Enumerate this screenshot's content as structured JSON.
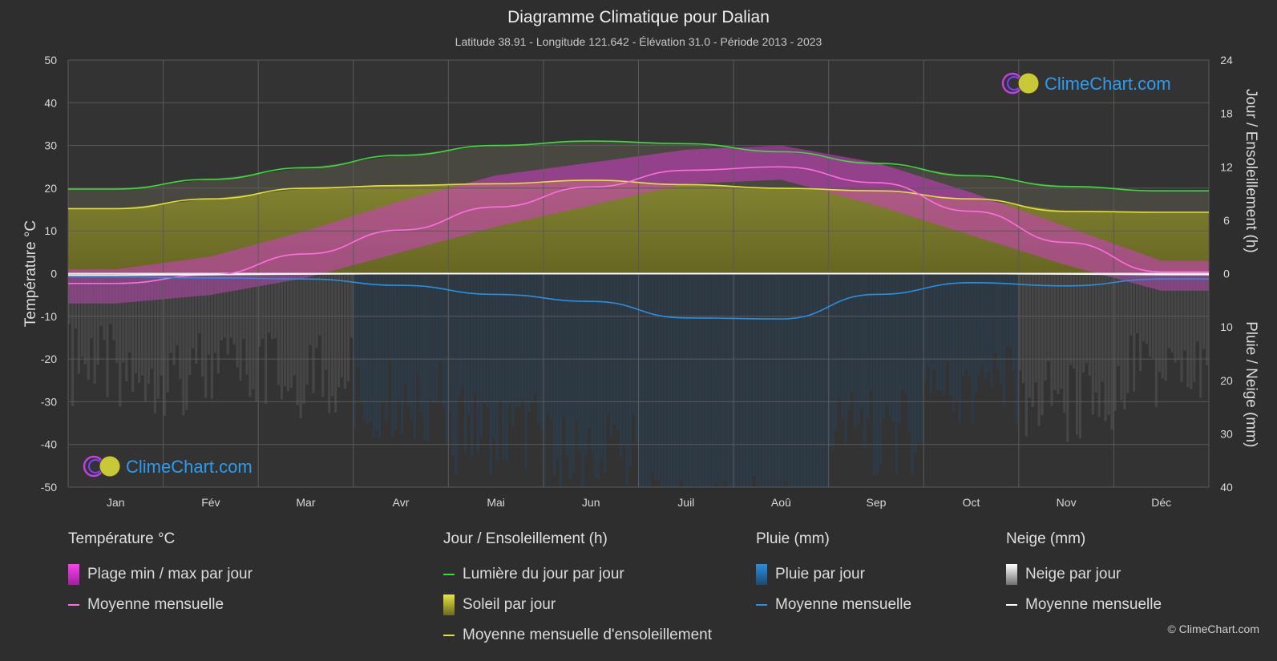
{
  "header": {
    "title": "Diagramme Climatique pour Dalian",
    "subtitle": "Latitude 38.91 - Longitude 121.642 - Élévation 31.0 - Période 2013 - 2023"
  },
  "chart_data": {
    "type": "line",
    "categories": [
      "Jan",
      "Fév",
      "Mar",
      "Avr",
      "Mai",
      "Jun",
      "Juil",
      "Aoû",
      "Sep",
      "Oct",
      "Nov",
      "Déc"
    ],
    "y_left": {
      "label": "Température °C",
      "range": [
        -50,
        50
      ],
      "ticks": [
        "50",
        "40",
        "30",
        "20",
        "10",
        "0",
        "-10",
        "-20",
        "-30",
        "-40",
        "-50"
      ]
    },
    "y_right_top": {
      "label": "Jour / Ensoleillement (h)",
      "range": [
        0,
        24
      ],
      "ticks": [
        "24",
        "18",
        "12",
        "6",
        "0"
      ]
    },
    "y_right_bottom": {
      "label": "Pluie / Neige (mm)",
      "range": [
        0,
        40
      ],
      "ticks": [
        "10",
        "20",
        "30",
        "40"
      ]
    },
    "series": [
      {
        "name": "Lumière du jour par jour",
        "unit": "h",
        "color": "#3ddc3d",
        "values": [
          9.5,
          10.6,
          11.9,
          13.3,
          14.4,
          14.9,
          14.6,
          13.7,
          12.4,
          11.0,
          9.8,
          9.3
        ]
      },
      {
        "name": "Moyenne mensuelle d'ensoleillement",
        "unit": "h",
        "color": "#e2e23a",
        "values": [
          7.3,
          8.4,
          9.6,
          9.9,
          10.1,
          10.5,
          10.0,
          9.6,
          9.3,
          8.4,
          7.0,
          6.9
        ]
      },
      {
        "name": "Moyenne mensuelle",
        "group": "Température °C",
        "unit": "°C",
        "color": "#ff6ee0",
        "values": [
          -2.3,
          -0.3,
          4.6,
          10.2,
          15.6,
          20.3,
          24.2,
          25.0,
          21.3,
          14.6,
          7.3,
          0.4
        ]
      },
      {
        "name": "Moyenne mensuelle",
        "group": "Pluie (mm)",
        "unit": "mm",
        "color": "#2b8fe0",
        "values": [
          0.6,
          0.8,
          1.0,
          2.2,
          3.9,
          5.2,
          8.3,
          8.5,
          3.9,
          1.7,
          2.3,
          1.0
        ]
      },
      {
        "name": "Moyenne mensuelle",
        "group": "Neige (mm)",
        "unit": "mm",
        "color": "#ffffff",
        "values": [
          0.3,
          0.2,
          0.1,
          0,
          0,
          0,
          0,
          0,
          0,
          0,
          0.1,
          0.2
        ]
      }
    ],
    "temp_range_max": [
      1,
      4,
      10,
      17,
      23,
      26,
      29,
      30,
      26,
      19,
      11,
      3
    ],
    "temp_range_min": [
      -7,
      -5,
      -1,
      5,
      11,
      16,
      21,
      22,
      16,
      9,
      2,
      -4
    ],
    "grid": true
  },
  "legend": {
    "groups": [
      {
        "title": "Température °C",
        "items": [
          {
            "label": "Plage min / max par jour",
            "kind": "box",
            "color": "#e23ad8"
          },
          {
            "label": "Moyenne mensuelle",
            "kind": "line",
            "color": "#ff6ee0"
          }
        ]
      },
      {
        "title": "Jour / Ensoleillement (h)",
        "items": [
          {
            "label": "Lumière du jour par jour",
            "kind": "line",
            "color": "#3ddc3d"
          },
          {
            "label": "Soleil par jour",
            "kind": "box",
            "color": "#c8c83a"
          },
          {
            "label": "Moyenne mensuelle d'ensoleillement",
            "kind": "line",
            "color": "#e2e23a"
          }
        ]
      },
      {
        "title": "Pluie (mm)",
        "items": [
          {
            "label": "Pluie par jour",
            "kind": "box",
            "color": "#2b8fe0"
          },
          {
            "label": "Moyenne mensuelle",
            "kind": "line",
            "color": "#2b8fe0"
          }
        ]
      },
      {
        "title": "Neige (mm)",
        "items": [
          {
            "label": "Neige par jour",
            "kind": "box",
            "color": "#d8d8d8"
          },
          {
            "label": "Moyenne mensuelle",
            "kind": "line",
            "color": "#ffffff"
          }
        ]
      }
    ]
  },
  "watermark": {
    "text": "ClimeChart.com"
  },
  "copyright": "© ClimeChart.com"
}
